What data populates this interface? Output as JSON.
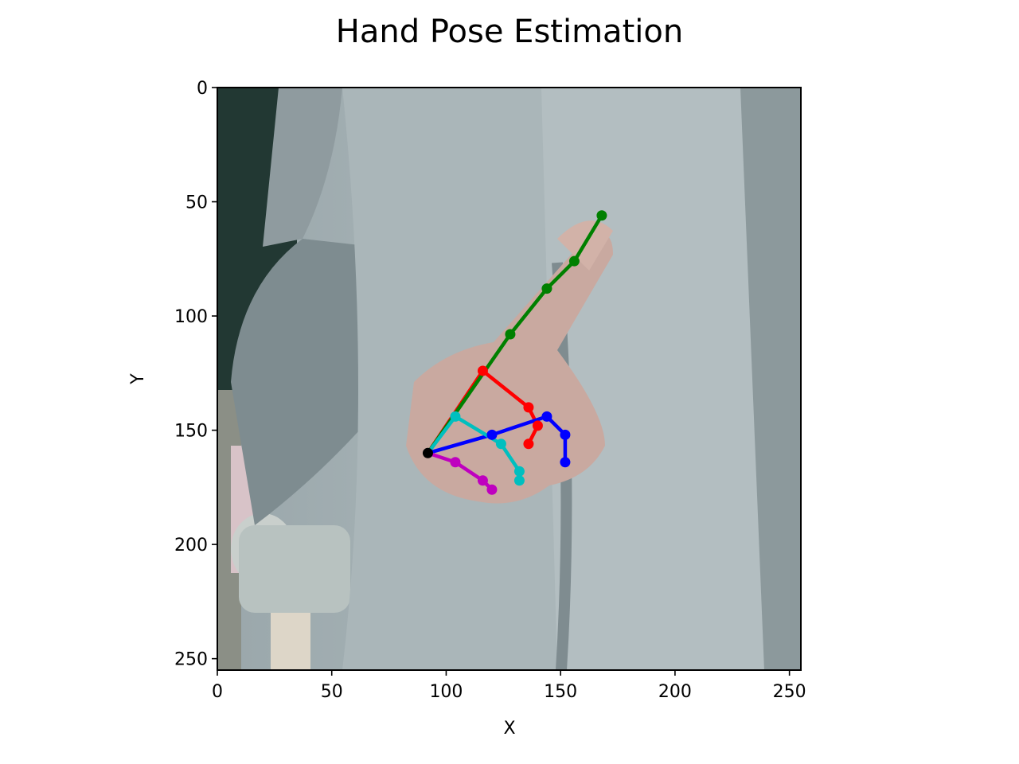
{
  "chart_data": {
    "type": "scatter",
    "title": "Hand Pose Estimation",
    "xlabel": "X",
    "ylabel": "Y",
    "xlim": [
      0,
      255
    ],
    "ylim": [
      255,
      0
    ],
    "y_axis_inverted": true,
    "grid": false,
    "background": "photo of a person in a grey-blue hooded jacket pointing with index finger",
    "x_ticks": [
      0,
      50,
      100,
      150,
      200,
      250
    ],
    "y_ticks": [
      0,
      50,
      100,
      150,
      200,
      250
    ],
    "wrist": {
      "x": 92,
      "y": 160,
      "color": "#000000"
    },
    "series": [
      {
        "color": "#ff0000",
        "points": [
          [
            92,
            160
          ],
          [
            116,
            124
          ],
          [
            136,
            140
          ],
          [
            140,
            148
          ],
          [
            136,
            156
          ]
        ]
      },
      {
        "color": "#008000",
        "points": [
          [
            92,
            160
          ],
          [
            128,
            108
          ],
          [
            144,
            88
          ],
          [
            156,
            76
          ],
          [
            168,
            56
          ]
        ]
      },
      {
        "color": "#0000ff",
        "points": [
          [
            92,
            160
          ],
          [
            120,
            152
          ],
          [
            144,
            144
          ],
          [
            152,
            152
          ],
          [
            152,
            164
          ]
        ]
      },
      {
        "color": "#00bfbf",
        "points": [
          [
            92,
            160
          ],
          [
            104,
            144
          ],
          [
            124,
            156
          ],
          [
            132,
            168
          ],
          [
            132,
            172
          ]
        ]
      },
      {
        "color": "#bf00bf",
        "points": [
          [
            92,
            160
          ],
          [
            104,
            164
          ],
          [
            116,
            172
          ],
          [
            120,
            176
          ]
        ]
      }
    ]
  }
}
